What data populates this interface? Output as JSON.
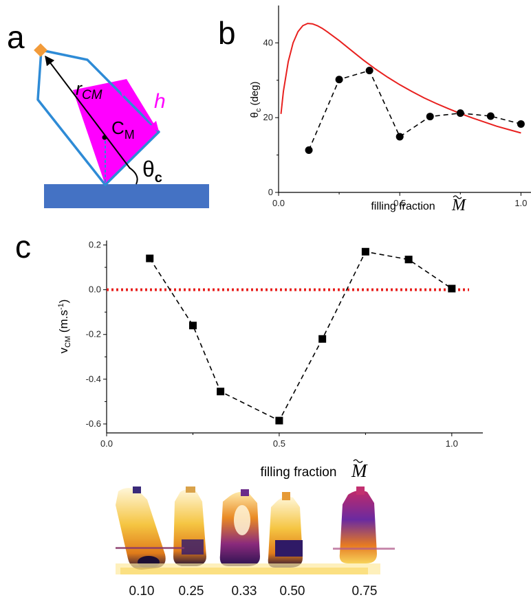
{
  "panel_a": {
    "letter": "a",
    "label_r": "r",
    "label_r_sub": "CM",
    "label_h": "h",
    "label_c": "C",
    "label_c_sub": "M",
    "label_theta": "θ",
    "label_theta_sub": "c",
    "colors": {
      "bottle_outline": "#2e8bd6",
      "fill": "#ff00ff",
      "cap": "#f29b3a",
      "surface": "#4472c4",
      "h_arrow": "#ff00ff"
    }
  },
  "chart_data": [
    {
      "id": "b",
      "panel_letter": "b",
      "type": "line",
      "xlabel": "filling fraction",
      "xlabel_symbol": "M",
      "ylabel": "θ",
      "ylabel_sub": "c",
      "ylabel_unit": " (deg)",
      "xlim": [
        0,
        1.05
      ],
      "ylim": [
        0,
        50
      ],
      "xticks": [
        0.0,
        0.5,
        1.0
      ],
      "xtick_labels": [
        "0.0",
        "0.5",
        "1.0"
      ],
      "yticks": [
        0,
        20,
        40
      ],
      "ytick_labels": [
        "0",
        "20",
        "40"
      ],
      "grid": false,
      "series": [
        {
          "style": "solid",
          "color": "#e8201e",
          "x": [
            0.01,
            0.02,
            0.04,
            0.06,
            0.08,
            0.1,
            0.12,
            0.14,
            0.16,
            0.18,
            0.2,
            0.25,
            0.3,
            0.35,
            0.4,
            0.45,
            0.5,
            0.55,
            0.6,
            0.65,
            0.7,
            0.75,
            0.8,
            0.85,
            0.9,
            0.95,
            1.0
          ],
          "y": [
            21,
            27,
            35,
            40,
            43,
            44.6,
            45.2,
            45.1,
            44.6,
            43.9,
            43,
            40.6,
            38,
            35.4,
            33,
            30.8,
            28.8,
            27,
            25.3,
            23.8,
            22.4,
            21.1,
            19.9,
            18.8,
            17.7,
            16.8,
            15.9
          ]
        },
        {
          "style": "dashed",
          "marker": "circle",
          "color": "#000000",
          "x": [
            0.125,
            0.25,
            0.375,
            0.5,
            0.625,
            0.75,
            0.875,
            1.0
          ],
          "y": [
            11.3,
            30.2,
            32.6,
            14.9,
            20.3,
            21.2,
            20.4,
            18.3
          ]
        }
      ]
    },
    {
      "id": "c",
      "panel_letter": "c",
      "type": "line",
      "xlabel": "filling fraction",
      "xlabel_symbol": "M",
      "ylabel": "v",
      "ylabel_sub": "CM",
      "ylabel_unit": " (m.s",
      "ylabel_sup": "-1",
      "ylabel_close": ")",
      "xlim": [
        0,
        1.09
      ],
      "ylim": [
        -0.64,
        0.22
      ],
      "xticks": [
        0.0,
        0.5,
        1.0
      ],
      "xtick_labels": [
        "0.0",
        "0.5",
        "1.0"
      ],
      "yticks": [
        0.2,
        0.0,
        -0.2,
        -0.4,
        -0.6
      ],
      "ytick_labels": [
        "0.2",
        "0.0",
        "-0.2",
        "-0.4",
        "-0.6"
      ],
      "grid": false,
      "reference_line": {
        "y": 0.0,
        "color": "#e8201e",
        "style": "dotted"
      },
      "series": [
        {
          "style": "dashed",
          "marker": "square",
          "color": "#000000",
          "x": [
            0.125,
            0.25,
            0.33,
            0.5,
            0.625,
            0.75,
            0.875,
            1.0
          ],
          "y": [
            0.14,
            -0.16,
            -0.455,
            -0.585,
            -0.22,
            0.17,
            0.135,
            0.005
          ]
        }
      ]
    }
  ],
  "photos": {
    "labels": [
      "0.10",
      "0.25",
      "0.33",
      "0.50",
      "0.75"
    ]
  }
}
